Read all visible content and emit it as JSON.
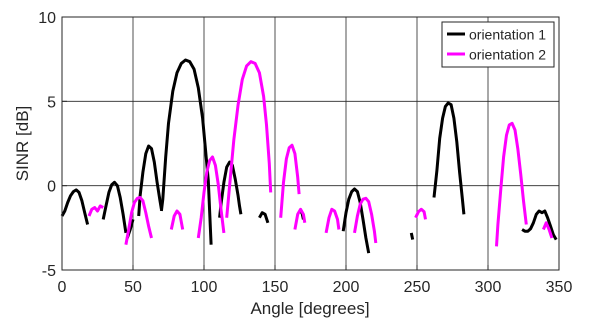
{
  "chart_data": {
    "type": "line",
    "title": "",
    "xlabel": "Angle [degrees]",
    "ylabel": "SINR [dB]",
    "xlim": [
      0,
      350
    ],
    "ylim": [
      -5,
      10
    ],
    "xticks": [
      0,
      50,
      100,
      150,
      200,
      250,
      300,
      350
    ],
    "yticks": [
      -5,
      0,
      5,
      10
    ],
    "xtick_labels": [
      "0",
      "50",
      "100",
      "150",
      "200",
      "250",
      "300",
      "350"
    ],
    "ytick_labels": [
      "-5",
      "0",
      "5",
      "10"
    ],
    "grid": true,
    "legend_position": "top-right",
    "series": [
      {
        "name": "orientation 1",
        "color": "#000000",
        "segments": [
          [
            [
              0,
              -1.8
            ],
            [
              2,
              -1.5
            ],
            [
              4,
              -1.0
            ],
            [
              6,
              -0.6
            ],
            [
              8,
              -0.35
            ],
            [
              10,
              -0.25
            ],
            [
              12,
              -0.4
            ],
            [
              14,
              -0.9
            ],
            [
              16,
              -1.6
            ],
            [
              18,
              -2.3
            ]
          ],
          [
            [
              29,
              -2.0
            ],
            [
              31,
              -1.2
            ],
            [
              33,
              -0.4
            ],
            [
              35,
              0.05
            ],
            [
              37,
              0.2
            ],
            [
              39,
              0.0
            ],
            [
              41,
              -0.7
            ],
            [
              43,
              -1.7
            ],
            [
              45,
              -2.8
            ]
          ],
          [
            [
              46,
              -3.1
            ],
            [
              48,
              -2.6
            ],
            [
              50,
              -2.0
            ]
          ],
          [
            [
              54,
              -1.8
            ],
            [
              55,
              -0.6
            ],
            [
              57,
              0.8
            ],
            [
              59,
              1.9
            ],
            [
              61,
              2.35
            ],
            [
              63,
              2.2
            ],
            [
              65,
              1.4
            ],
            [
              67,
              0.2
            ],
            [
              69,
              -0.9
            ],
            [
              70,
              -1.4
            ]
          ],
          [
            [
              70,
              -1.5
            ],
            [
              71,
              -0.8
            ],
            [
              73,
              1.7
            ],
            [
              75,
              3.7
            ],
            [
              78,
              5.6
            ],
            [
              81,
              6.7
            ],
            [
              84,
              7.25
            ],
            [
              87,
              7.45
            ],
            [
              90,
              7.35
            ],
            [
              93,
              6.9
            ],
            [
              96,
              5.8
            ],
            [
              99,
              4.0
            ],
            [
              101,
              2.2
            ],
            [
              103,
              0.3
            ],
            [
              104,
              -1.6
            ],
            [
              105,
              -3.5
            ]
          ],
          [
            [
              111,
              -1.9
            ],
            [
              112,
              -1.1
            ],
            [
              114,
              0.2
            ],
            [
              116,
              1.1
            ],
            [
              118,
              1.4
            ],
            [
              120,
              1.2
            ],
            [
              122,
              0.4
            ],
            [
              124,
              -0.6
            ],
            [
              125,
              -1.2
            ],
            [
              126,
              -1.7
            ]
          ],
          [
            [
              139,
              -1.9
            ],
            [
              141,
              -1.6
            ],
            [
              143,
              -1.7
            ],
            [
              145,
              -2.2
            ]
          ],
          [
            [
              167,
              -1.5
            ],
            [
              169,
              -1.6
            ],
            [
              170,
              -2.0
            ]
          ],
          [
            [
              198,
              -2.7
            ],
            [
              200,
              -1.6
            ],
            [
              202,
              -0.8
            ],
            [
              204,
              -0.35
            ],
            [
              206,
              -0.2
            ],
            [
              208,
              -0.35
            ],
            [
              210,
              -1.0
            ],
            [
              212,
              -2.0
            ],
            [
              214,
              -3.1
            ],
            [
              216,
              -4.0
            ]
          ],
          [
            [
              246,
              -2.8
            ],
            [
              247,
              -3.2
            ]
          ],
          [
            [
              262,
              -0.7
            ],
            [
              264,
              0.9
            ],
            [
              266,
              2.8
            ],
            [
              268,
              4.0
            ],
            [
              270,
              4.7
            ],
            [
              272,
              4.9
            ],
            [
              274,
              4.8
            ],
            [
              276,
              4.0
            ],
            [
              278,
              2.6
            ],
            [
              280,
              0.8
            ],
            [
              282,
              -0.8
            ],
            [
              283,
              -1.7
            ]
          ],
          [
            [
              324,
              -2.6
            ],
            [
              326,
              -2.7
            ],
            [
              328,
              -2.7
            ],
            [
              330,
              -2.55
            ],
            [
              332,
              -2.2
            ],
            [
              334,
              -1.7
            ],
            [
              336,
              -1.5
            ],
            [
              338,
              -1.6
            ],
            [
              340,
              -1.5
            ],
            [
              342,
              -1.9
            ],
            [
              344,
              -2.4
            ],
            [
              346,
              -2.9
            ],
            [
              348,
              -3.2
            ]
          ]
        ]
      },
      {
        "name": "orientation 2",
        "color": "#ff00ff",
        "segments": [
          [
            [
              19,
              -1.8
            ],
            [
              21,
              -1.4
            ],
            [
              23,
              -1.3
            ],
            [
              25,
              -1.5
            ],
            [
              27,
              -1.2
            ],
            [
              29,
              -1.3
            ]
          ],
          [
            [
              45,
              -3.5
            ],
            [
              47,
              -2.6
            ],
            [
              49,
              -1.6
            ],
            [
              51,
              -1.0
            ],
            [
              53,
              -0.75
            ],
            [
              55,
              -0.7
            ],
            [
              57,
              -0.9
            ],
            [
              59,
              -1.6
            ],
            [
              61,
              -2.4
            ],
            [
              63,
              -3.1
            ]
          ],
          [
            [
              77,
              -2.6
            ],
            [
              79,
              -1.8
            ],
            [
              81,
              -1.5
            ],
            [
              83,
              -1.7
            ],
            [
              85,
              -2.6
            ]
          ],
          [
            [
              96,
              -3.1
            ],
            [
              98,
              -1.9
            ],
            [
              100,
              -0.4
            ],
            [
              102,
              0.8
            ],
            [
              104,
              1.5
            ],
            [
              106,
              1.7
            ],
            [
              108,
              1.2
            ],
            [
              110,
              0.1
            ],
            [
              112,
              -1.4
            ],
            [
              114,
              -2.8
            ]
          ],
          [
            [
              116,
              -1.9
            ],
            [
              118,
              0.0
            ],
            [
              121,
              2.7
            ],
            [
              124,
              4.8
            ],
            [
              127,
              6.3
            ],
            [
              130,
              7.1
            ],
            [
              133,
              7.35
            ],
            [
              136,
              7.25
            ],
            [
              139,
              6.7
            ],
            [
              142,
              5.3
            ],
            [
              144,
              3.6
            ],
            [
              146,
              1.3
            ],
            [
              147,
              -0.4
            ]
          ],
          [
            [
              154,
              -1.9
            ],
            [
              156,
              0.2
            ],
            [
              158,
              1.6
            ],
            [
              160,
              2.25
            ],
            [
              162,
              2.4
            ],
            [
              164,
              1.9
            ],
            [
              166,
              0.5
            ],
            [
              167,
              -0.5
            ]
          ],
          [
            [
              164,
              -2.6
            ],
            [
              166,
              -1.7
            ],
            [
              168,
              -1.4
            ],
            [
              170,
              -1.7
            ],
            [
              171,
              -2.2
            ]
          ],
          [
            [
              186,
              -2.8
            ],
            [
              188,
              -1.9
            ],
            [
              190,
              -1.4
            ],
            [
              192,
              -1.5
            ],
            [
              194,
              -2.0
            ],
            [
              195,
              -2.6
            ]
          ],
          [
            [
              206,
              -2.8
            ],
            [
              208,
              -1.8
            ],
            [
              210,
              -1.1
            ],
            [
              212,
              -0.8
            ],
            [
              214,
              -0.75
            ],
            [
              216,
              -0.95
            ],
            [
              218,
              -1.7
            ],
            [
              220,
              -2.7
            ],
            [
              221,
              -3.4
            ]
          ],
          [
            [
              249,
              -1.9
            ],
            [
              251,
              -1.55
            ],
            [
              253,
              -1.4
            ],
            [
              255,
              -1.55
            ],
            [
              256,
              -2.0
            ]
          ],
          [
            [
              306,
              -3.6
            ],
            [
              307,
              -2.3
            ],
            [
              309,
              -0.2
            ],
            [
              311,
              1.7
            ],
            [
              313,
              3.0
            ],
            [
              315,
              3.6
            ],
            [
              317,
              3.7
            ],
            [
              319,
              3.3
            ],
            [
              321,
              2.2
            ],
            [
              323,
              0.7
            ],
            [
              325,
              -0.9
            ],
            [
              327,
              -2.3
            ]
          ],
          [
            [
              339,
              -2.6
            ],
            [
              341,
              -2.2
            ],
            [
              343,
              -2.6
            ],
            [
              345,
              -3.1
            ]
          ]
        ]
      }
    ]
  }
}
